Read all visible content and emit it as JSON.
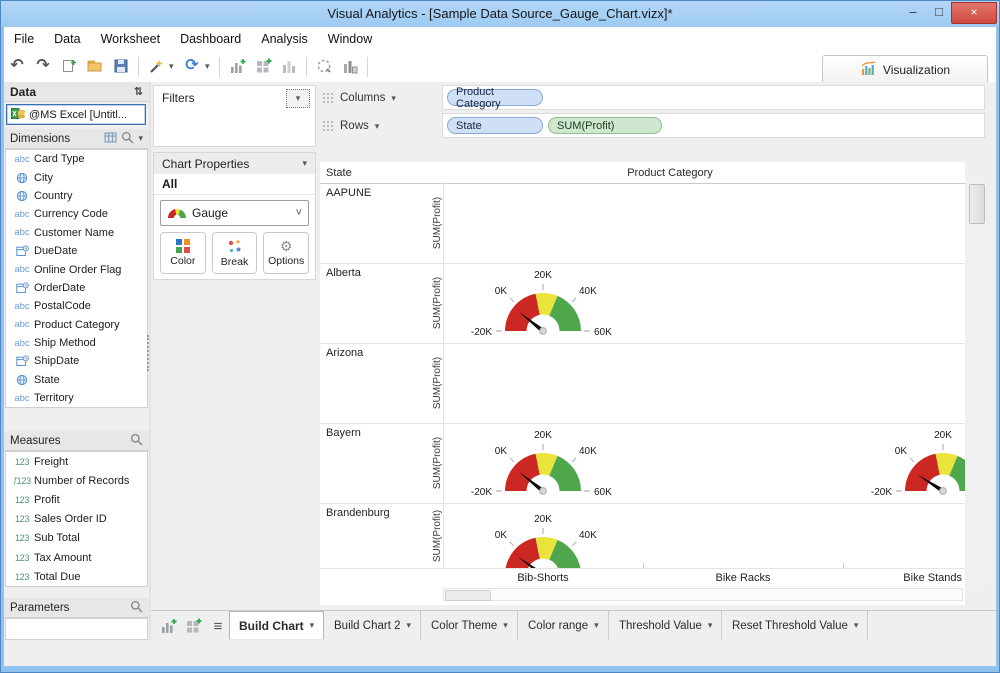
{
  "window": {
    "title": "Visual Analytics - [Sample Data Source_Gauge_Chart.vizx]*",
    "controls": {
      "minimize": "–",
      "maximize": "□",
      "close": "×"
    }
  },
  "menu": {
    "items": [
      "File",
      "Data",
      "Worksheet",
      "Dashboard",
      "Analysis",
      "Window"
    ]
  },
  "toolbar": {
    "icons": [
      "undo",
      "redo",
      "new-document",
      "open-folder",
      "save",
      "sep",
      "clear",
      "caret",
      "refresh",
      "caret",
      "sep",
      "add-chart",
      "add-dashboard",
      "bar-chart",
      "sep",
      "lasso-select",
      "column-chart",
      "sep"
    ],
    "visualization_label": "Visualization"
  },
  "data_panel": {
    "title": "Data",
    "source": "@MS Excel [Untitl...",
    "dimensions": {
      "title": "Dimensions",
      "items": [
        {
          "icon": "abc",
          "label": "Card Type"
        },
        {
          "icon": "globe",
          "label": "City"
        },
        {
          "icon": "globe",
          "label": "Country"
        },
        {
          "icon": "abc",
          "label": "Currency Code"
        },
        {
          "icon": "abc",
          "label": "Customer Name"
        },
        {
          "icon": "date",
          "label": "DueDate"
        },
        {
          "icon": "abc",
          "label": "Online Order Flag"
        },
        {
          "icon": "date",
          "label": "OrderDate"
        },
        {
          "icon": "abc",
          "label": "PostalCode"
        },
        {
          "icon": "abc",
          "label": "Product Category"
        },
        {
          "icon": "abc",
          "label": "Ship Method"
        },
        {
          "icon": "date",
          "label": "ShipDate"
        },
        {
          "icon": "globe",
          "label": "State"
        },
        {
          "icon": "abc",
          "label": "Territory"
        }
      ]
    },
    "measures": {
      "title": "Measures",
      "items": [
        {
          "icon": "123",
          "label": "Freight"
        },
        {
          "icon": "fx123",
          "label": "Number of Records"
        },
        {
          "icon": "123",
          "label": "Profit"
        },
        {
          "icon": "123",
          "label": "Sales Order ID"
        },
        {
          "icon": "123",
          "label": "Sub Total"
        },
        {
          "icon": "123",
          "label": "Tax Amount"
        },
        {
          "icon": "123",
          "label": "Total Due"
        }
      ]
    },
    "parameters": {
      "title": "Parameters"
    }
  },
  "filters_panel": {
    "title": "Filters"
  },
  "chart_properties": {
    "title": "Chart Properties",
    "scope": "All",
    "chart_type": "Gauge",
    "buttons": [
      {
        "label": "Color"
      },
      {
        "label": "Break"
      },
      {
        "label": "Options"
      }
    ]
  },
  "shelves": {
    "columns_label": "Columns",
    "rows_label": "Rows",
    "columns_pills": [
      {
        "label": "Product Category",
        "type": "dim"
      }
    ],
    "rows_pills": [
      {
        "label": "State",
        "type": "dim"
      },
      {
        "label": "SUM(Profit)",
        "type": "measure"
      }
    ]
  },
  "chart_data": {
    "type": "gauge",
    "row_header": "State",
    "column_header": "Product Category",
    "measure_label": "SUM(Profit)",
    "rows": [
      "AAPUNE",
      "Alberta",
      "Arizona",
      "Bayern",
      "Brandenburg"
    ],
    "columns": [
      "Bib-Shorts",
      "Bike Racks",
      "Bike Stands"
    ],
    "axis": {
      "min": -20000,
      "max": 60000,
      "ticks": [
        "-20K",
        "0K",
        "20K",
        "40K",
        "60K"
      ]
    },
    "zones": [
      {
        "from": -20000,
        "to": 15000,
        "color": "#cb2824"
      },
      {
        "from": 15000,
        "to": 30000,
        "color": "#e9e33c"
      },
      {
        "from": 30000,
        "to": 60000,
        "color": "#4fa64c"
      }
    ],
    "gauges": [
      {
        "row": "Alberta",
        "column": "Bib-Shorts",
        "value": -3000,
        "clipped_bottom": false
      },
      {
        "row": "Bayern",
        "column": "Bib-Shorts",
        "value": -3000,
        "clipped_bottom": false
      },
      {
        "row": "Bayern",
        "column": "Bike Stands",
        "value": -5500,
        "clipped_bottom": false
      },
      {
        "row": "Brandenburg",
        "column": "Bib-Shorts",
        "value": -4000,
        "clipped_bottom": true
      }
    ]
  },
  "bottom_tabs": {
    "icons": [
      "add-chart",
      "add-dashboard",
      "list"
    ],
    "tabs": [
      {
        "label": "Build Chart",
        "active": true
      },
      {
        "label": "Build Chart 2",
        "active": false
      },
      {
        "label": "Color Theme",
        "active": false
      },
      {
        "label": "Color range",
        "active": false
      },
      {
        "label": "Threshold Value",
        "active": false
      },
      {
        "label": "Reset Threshold Value",
        "active": false
      }
    ]
  },
  "colors": {
    "titlebar_bg": "#a5cff2",
    "window_border": "#8fc2ef",
    "close_button": "#d04a3f",
    "dim_pill_bg": "#cfe0f6",
    "measure_pill_bg": "#cfe7cf",
    "gauge_red": "#cb2824",
    "gauge_yellow": "#e9e33c",
    "gauge_green": "#4fa64c",
    "panel_bg": "#efefef"
  }
}
